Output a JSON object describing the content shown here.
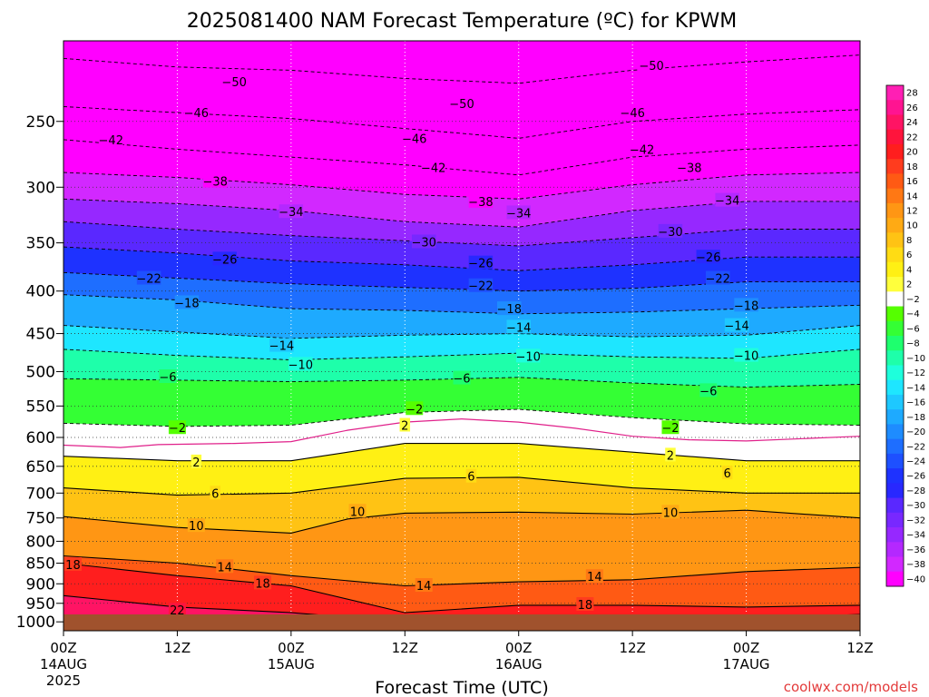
{
  "chart_data": {
    "type": "heatmap",
    "title": "2025081400 NAM Forecast Temperature (ºC) for KPWM",
    "xlabel": "Forecast Time (UTC)",
    "ylabel": "",
    "credit": "coolwx.com/models",
    "y_axis": {
      "scale": "log-pressure",
      "inverted": true,
      "range_hpa": [
        1025,
        200
      ],
      "ticks": [
        250,
        300,
        350,
        400,
        450,
        500,
        550,
        600,
        650,
        700,
        750,
        800,
        850,
        900,
        950,
        1000
      ]
    },
    "x_axis": {
      "range_hours": [
        0,
        84
      ],
      "ticks": [
        {
          "hour": 0,
          "label": "00Z",
          "sub": "14AUG",
          "sub2": "2025"
        },
        {
          "hour": 12,
          "label": "12Z",
          "sub": "",
          "sub2": ""
        },
        {
          "hour": 24,
          "label": "00Z",
          "sub": "15AUG",
          "sub2": ""
        },
        {
          "hour": 36,
          "label": "12Z",
          "sub": "",
          "sub2": ""
        },
        {
          "hour": 48,
          "label": "00Z",
          "sub": "16AUG",
          "sub2": ""
        },
        {
          "hour": 60,
          "label": "12Z",
          "sub": "",
          "sub2": ""
        },
        {
          "hour": 72,
          "label": "00Z",
          "sub": "17AUG",
          "sub2": ""
        },
        {
          "hour": 84,
          "label": "12Z",
          "sub": "",
          "sub2": ""
        }
      ]
    },
    "grid": true,
    "colorbar": {
      "placement": "right",
      "levels": [
        28,
        26,
        24,
        22,
        20,
        18,
        16,
        14,
        12,
        10,
        8,
        6,
        4,
        2,
        -2,
        -4,
        -6,
        -8,
        -10,
        -12,
        -14,
        -16,
        -18,
        -20,
        -22,
        -24,
        -26,
        -28,
        -30,
        -32,
        -34,
        -36,
        -38,
        -40
      ],
      "colors": [
        "#ff1fb4",
        "#ff1491",
        "#ff1464",
        "#ff143c",
        "#ff1e1e",
        "#ff3c1e",
        "#ff5a14",
        "#ff7814",
        "#ff9614",
        "#ffaa14",
        "#ffc314",
        "#ffdc14",
        "#fff014",
        "#ffff3c",
        "#ffffff",
        "#55ff00",
        "#34ff34",
        "#1eff6e",
        "#1effaa",
        "#1effdc",
        "#1ee6ff",
        "#1ec8ff",
        "#1eaaff",
        "#1e8cff",
        "#1e6eff",
        "#1e50ff",
        "#1e32ff",
        "#2828ff",
        "#5a28ff",
        "#7828ff",
        "#9628ff",
        "#b428ff",
        "#d228ff",
        "#ff00ff"
      ]
    },
    "freezing_line_hpa": [
      {
        "hour": 0,
        "p": 613
      },
      {
        "hour": 6,
        "p": 617
      },
      {
        "hour": 10,
        "p": 612
      },
      {
        "hour": 18,
        "p": 610
      },
      {
        "hour": 24,
        "p": 607
      },
      {
        "hour": 30,
        "p": 588
      },
      {
        "hour": 36,
        "p": 575
      },
      {
        "hour": 42,
        "p": 570
      },
      {
        "hour": 48,
        "p": 575
      },
      {
        "hour": 54,
        "p": 585
      },
      {
        "hour": 60,
        "p": 598
      },
      {
        "hour": 66,
        "p": 604
      },
      {
        "hour": 72,
        "p": 606
      },
      {
        "hour": 78,
        "p": 602
      },
      {
        "hour": 84,
        "p": 598
      }
    ],
    "isotherms": [
      {
        "t": -50,
        "dashed": true,
        "label": "−50",
        "points": [
          [
            0,
            210
          ],
          [
            12,
            215
          ],
          [
            24,
            217
          ],
          [
            36,
            222
          ],
          [
            48,
            225
          ],
          [
            60,
            217
          ],
          [
            72,
            212
          ],
          [
            84,
            208
          ]
        ],
        "labels_at": [
          [
            18,
            224
          ],
          [
            42,
            238
          ],
          [
            62,
            214
          ]
        ]
      },
      {
        "t": -46,
        "dashed": true,
        "label": "−46",
        "points": [
          [
            0,
            240
          ],
          [
            12,
            244
          ],
          [
            24,
            248
          ],
          [
            36,
            255
          ],
          [
            48,
            262
          ],
          [
            60,
            250
          ],
          [
            72,
            245
          ],
          [
            84,
            242
          ]
        ],
        "labels_at": [
          [
            14,
            244
          ],
          [
            37,
            262
          ],
          [
            60,
            244
          ]
        ]
      },
      {
        "t": -42,
        "dashed": true,
        "label": "−42",
        "points": [
          [
            0,
            263
          ],
          [
            12,
            270
          ],
          [
            24,
            276
          ],
          [
            36,
            282
          ],
          [
            48,
            290
          ],
          [
            60,
            276
          ],
          [
            72,
            270
          ],
          [
            84,
            267
          ]
        ],
        "labels_at": [
          [
            5,
            263
          ],
          [
            39,
            284
          ],
          [
            61,
            270
          ]
        ]
      },
      {
        "t": -38,
        "dashed": true,
        "label": "−38",
        "points": [
          [
            0,
            288
          ],
          [
            12,
            292
          ],
          [
            24,
            298
          ],
          [
            36,
            306
          ],
          [
            48,
            310
          ],
          [
            60,
            298
          ],
          [
            72,
            290
          ],
          [
            84,
            288
          ]
        ],
        "labels_at": [
          [
            16,
            295
          ],
          [
            44,
            312
          ],
          [
            66,
            284
          ]
        ]
      },
      {
        "t": -34,
        "dashed": true,
        "label": "−34",
        "points": [
          [
            0,
            310
          ],
          [
            12,
            314
          ],
          [
            24,
            320
          ],
          [
            36,
            330
          ],
          [
            48,
            335
          ],
          [
            60,
            320
          ],
          [
            72,
            312
          ],
          [
            84,
            312
          ]
        ],
        "labels_at": [
          [
            24,
            321
          ],
          [
            48,
            322
          ],
          [
            70,
            311
          ]
        ]
      },
      {
        "t": -30,
        "dashed": true,
        "label": "−30",
        "points": [
          [
            0,
            330
          ],
          [
            12,
            337
          ],
          [
            24,
            343
          ],
          [
            36,
            348
          ],
          [
            48,
            353
          ],
          [
            60,
            345
          ],
          [
            72,
            337
          ],
          [
            84,
            337
          ]
        ],
        "labels_at": [
          [
            38,
            349
          ],
          [
            64,
            339
          ]
        ]
      },
      {
        "t": -26,
        "dashed": true,
        "label": "−26",
        "points": [
          [
            0,
            354
          ],
          [
            12,
            360
          ],
          [
            24,
            368
          ],
          [
            36,
            372
          ],
          [
            48,
            378
          ],
          [
            60,
            372
          ],
          [
            72,
            364
          ],
          [
            84,
            364
          ]
        ],
        "labels_at": [
          [
            17,
            366
          ],
          [
            44,
            370
          ],
          [
            68,
            364
          ]
        ]
      },
      {
        "t": -22,
        "dashed": true,
        "label": "−22",
        "points": [
          [
            0,
            380
          ],
          [
            12,
            386
          ],
          [
            24,
            392
          ],
          [
            36,
            396
          ],
          [
            48,
            400
          ],
          [
            60,
            397
          ],
          [
            72,
            390
          ],
          [
            84,
            390
          ]
        ],
        "labels_at": [
          [
            9,
            386
          ],
          [
            44,
            394
          ],
          [
            69,
            386
          ]
        ]
      },
      {
        "t": -18,
        "dashed": true,
        "label": "−18",
        "points": [
          [
            0,
            404
          ],
          [
            12,
            410
          ],
          [
            24,
            420
          ],
          [
            36,
            422
          ],
          [
            48,
            426
          ],
          [
            60,
            424
          ],
          [
            72,
            420
          ],
          [
            84,
            416
          ]
        ],
        "labels_at": [
          [
            13,
            413
          ],
          [
            47,
            420
          ],
          [
            72,
            416
          ]
        ]
      },
      {
        "t": -14,
        "dashed": true,
        "label": "−14",
        "points": [
          [
            0,
            440
          ],
          [
            12,
            448
          ],
          [
            24,
            456
          ],
          [
            36,
            452
          ],
          [
            48,
            450
          ],
          [
            60,
            454
          ],
          [
            72,
            452
          ],
          [
            84,
            440
          ]
        ],
        "labels_at": [
          [
            23,
            465
          ],
          [
            48,
            442
          ],
          [
            71,
            440
          ]
        ]
      },
      {
        "t": -10,
        "dashed": true,
        "label": "−10",
        "points": [
          [
            0,
            470
          ],
          [
            12,
            478
          ],
          [
            24,
            484
          ],
          [
            36,
            480
          ],
          [
            48,
            475
          ],
          [
            60,
            480
          ],
          [
            72,
            482
          ],
          [
            84,
            470
          ]
        ],
        "labels_at": [
          [
            25,
            490
          ],
          [
            49,
            479
          ],
          [
            72,
            478
          ]
        ]
      },
      {
        "t": -6,
        "dashed": true,
        "label": "−6",
        "points": [
          [
            0,
            510
          ],
          [
            12,
            512
          ],
          [
            24,
            514
          ],
          [
            36,
            512
          ],
          [
            48,
            508
          ],
          [
            60,
            516
          ],
          [
            72,
            522
          ],
          [
            84,
            518
          ]
        ],
        "labels_at": [
          [
            11,
            507
          ],
          [
            42,
            509
          ],
          [
            68,
            527
          ]
        ]
      },
      {
        "t": -2,
        "dashed": true,
        "label": "−2",
        "points": [
          [
            0,
            577
          ],
          [
            12,
            582
          ],
          [
            24,
            580
          ],
          [
            36,
            560
          ],
          [
            48,
            555
          ],
          [
            60,
            568
          ],
          [
            72,
            578
          ],
          [
            84,
            580
          ]
        ],
        "labels_at": [
          [
            12,
            584
          ],
          [
            37,
            554
          ],
          [
            64,
            584
          ]
        ]
      },
      {
        "t": 2,
        "dashed": false,
        "label": "2",
        "points": [
          [
            0,
            632
          ],
          [
            12,
            640
          ],
          [
            24,
            640
          ],
          [
            36,
            610
          ],
          [
            48,
            610
          ],
          [
            60,
            625
          ],
          [
            72,
            640
          ],
          [
            84,
            640
          ]
        ],
        "labels_at": [
          [
            14,
            642
          ],
          [
            36,
            580
          ],
          [
            64,
            630
          ]
        ]
      },
      {
        "t": 6,
        "dashed": false,
        "label": "6",
        "points": [
          [
            0,
            690
          ],
          [
            12,
            704
          ],
          [
            24,
            700
          ],
          [
            36,
            672
          ],
          [
            48,
            670
          ],
          [
            60,
            690
          ],
          [
            72,
            700
          ],
          [
            84,
            700
          ]
        ],
        "labels_at": [
          [
            16,
            700
          ],
          [
            43,
            668
          ],
          [
            70,
            662
          ]
        ]
      },
      {
        "t": 10,
        "dashed": false,
        "label": "10",
        "points": [
          [
            0,
            747
          ],
          [
            12,
            770
          ],
          [
            24,
            782
          ],
          [
            30,
            752
          ],
          [
            36,
            740
          ],
          [
            48,
            738
          ],
          [
            60,
            742
          ],
          [
            72,
            734
          ],
          [
            84,
            750
          ]
        ],
        "labels_at": [
          [
            14,
            766
          ],
          [
            31,
            736
          ],
          [
            64,
            738
          ]
        ]
      },
      {
        "t": 14,
        "dashed": false,
        "label": "14",
        "points": [
          [
            0,
            833
          ],
          [
            12,
            850
          ],
          [
            24,
            880
          ],
          [
            36,
            905
          ],
          [
            48,
            895
          ],
          [
            60,
            890
          ],
          [
            72,
            870
          ],
          [
            84,
            860
          ]
        ],
        "labels_at": [
          [
            17,
            858
          ],
          [
            38,
            904
          ],
          [
            56,
            882
          ]
        ]
      },
      {
        "t": 18,
        "dashed": false,
        "label": "18",
        "points": [
          [
            0,
            850
          ],
          [
            12,
            880
          ],
          [
            24,
            905
          ],
          [
            36,
            975
          ],
          [
            48,
            955
          ],
          [
            60,
            955
          ],
          [
            72,
            960
          ],
          [
            84,
            955
          ]
        ],
        "labels_at": [
          [
            1,
            853
          ],
          [
            21,
            898
          ],
          [
            55,
            953
          ]
        ]
      },
      {
        "t": 22,
        "dashed": false,
        "label": "22",
        "points": [
          [
            0,
            930
          ],
          [
            12,
            960
          ],
          [
            24,
            975
          ],
          [
            36,
            1000
          ],
          [
            48,
            1005
          ],
          [
            60,
            1000
          ],
          [
            72,
            990
          ],
          [
            84,
            980
          ]
        ],
        "labels_at": [
          [
            12,
            968
          ]
        ]
      }
    ]
  }
}
